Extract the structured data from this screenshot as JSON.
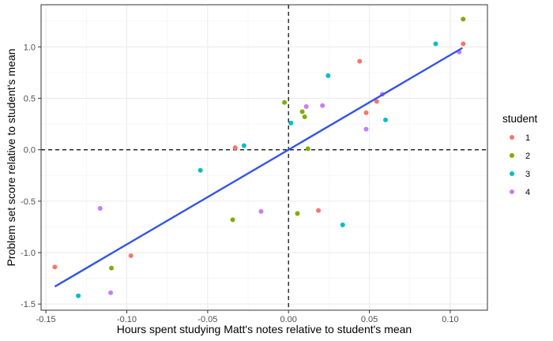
{
  "chart_data": {
    "type": "scatter",
    "xlabel": "Hours spent studying Matt's notes relative to student's mean",
    "ylabel": "Problem set score relative to student's mean",
    "xlim": [
      -0.153,
      0.123
    ],
    "ylim": [
      -1.56,
      1.41
    ],
    "x_ticks": [
      -0.15,
      -0.1,
      -0.05,
      0.0,
      0.05,
      0.1
    ],
    "x_tick_labels": [
      "-0.15",
      "-0.10",
      "-0.05",
      "0.00",
      "0.05",
      "0.10"
    ],
    "y_ticks": [
      -1.5,
      -1.0,
      -0.5,
      0.0,
      0.5,
      1.0
    ],
    "y_tick_labels": [
      "-1.5",
      "-1.0",
      "-0.5",
      "0.0",
      "0.5",
      "1.0"
    ],
    "grid": true,
    "reference_lines": {
      "x": 0,
      "y": 0,
      "style": "dashed"
    },
    "fit_line": {
      "type": "linear",
      "x": [
        -0.1445,
        0.1075
      ],
      "y": [
        -1.33,
        0.99
      ],
      "color": "#3355e6"
    },
    "legend": {
      "title": "student",
      "position": "right"
    },
    "series": [
      {
        "name": "1",
        "color": "#f8766d",
        "points": [
          {
            "x": -0.1445,
            "y": -1.14
          },
          {
            "x": -0.0975,
            "y": -1.03
          },
          {
            "x": -0.033,
            "y": 0.02
          },
          {
            "x": 0.0185,
            "y": -0.59
          },
          {
            "x": 0.044,
            "y": 0.86
          },
          {
            "x": 0.048,
            "y": 0.36
          },
          {
            "x": 0.0545,
            "y": 0.47
          },
          {
            "x": 0.108,
            "y": 1.03
          }
        ]
      },
      {
        "name": "2",
        "color": "#7cae00",
        "points": [
          {
            "x": -0.1095,
            "y": -1.15
          },
          {
            "x": -0.0345,
            "y": -0.68
          },
          {
            "x": -0.0025,
            "y": 0.46
          },
          {
            "x": 0.0055,
            "y": -0.62
          },
          {
            "x": 0.0085,
            "y": 0.37
          },
          {
            "x": 0.01,
            "y": 0.32
          },
          {
            "x": 0.012,
            "y": 0.01
          },
          {
            "x": 0.108,
            "y": 1.27
          }
        ]
      },
      {
        "name": "3",
        "color": "#00bfc4",
        "points": [
          {
            "x": -0.13,
            "y": -1.42
          },
          {
            "x": -0.0545,
            "y": -0.2
          },
          {
            "x": -0.0275,
            "y": 0.04
          },
          {
            "x": 0.0015,
            "y": 0.26
          },
          {
            "x": 0.0245,
            "y": 0.72
          },
          {
            "x": 0.0335,
            "y": -0.73
          },
          {
            "x": 0.06,
            "y": 0.29
          },
          {
            "x": 0.091,
            "y": 1.03
          }
        ]
      },
      {
        "name": "4",
        "color": "#c77cff",
        "points": [
          {
            "x": -0.1165,
            "y": -0.57
          },
          {
            "x": -0.11,
            "y": -1.39
          },
          {
            "x": -0.017,
            "y": -0.6
          },
          {
            "x": 0.011,
            "y": 0.42
          },
          {
            "x": 0.021,
            "y": 0.43
          },
          {
            "x": 0.048,
            "y": 0.2
          },
          {
            "x": 0.058,
            "y": 0.54
          },
          {
            "x": 0.1055,
            "y": 0.95
          }
        ]
      }
    ]
  }
}
